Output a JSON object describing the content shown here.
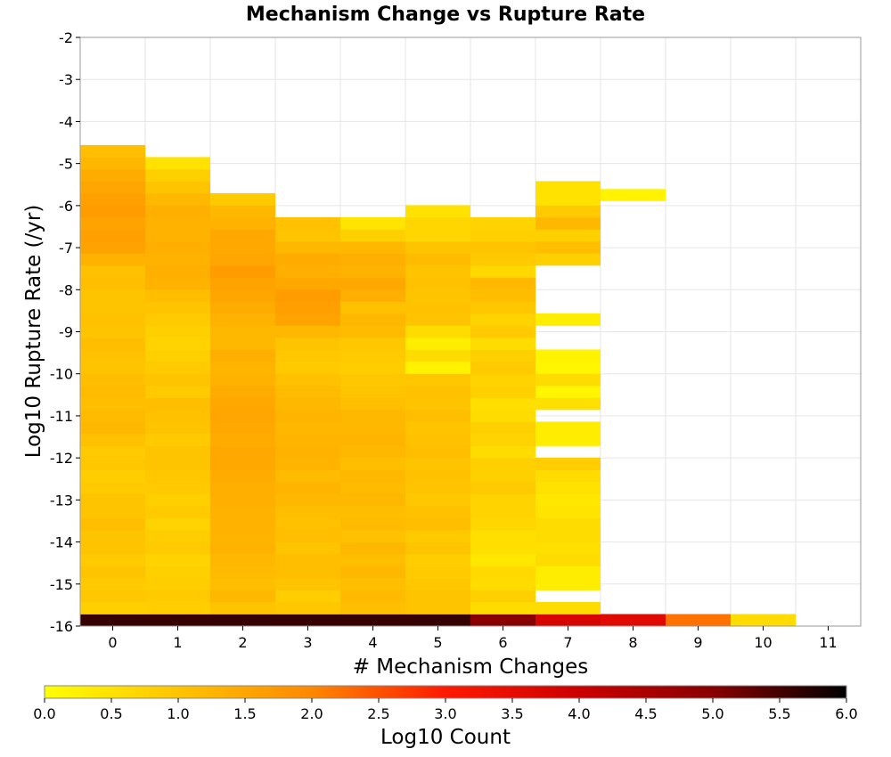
{
  "chart_data": {
    "type": "heatmap",
    "title": "Mechanism Change vs Rupture Rate",
    "xlabel": "# Mechanism Changes",
    "ylabel": "Log10 Rupture Rate (/yr)",
    "x_categories": [
      0,
      1,
      2,
      3,
      4,
      5,
      6,
      7,
      8,
      9,
      10,
      11
    ],
    "xlim": [
      -0.5,
      11.5
    ],
    "ylim": [
      -16,
      -2
    ],
    "y_ticks": [
      -2,
      -3,
      -4,
      -5,
      -6,
      -7,
      -8,
      -9,
      -10,
      -11,
      -12,
      -13,
      -14,
      -15,
      -16
    ],
    "y_bin_width": 0.286,
    "y_bin_start": -16.0,
    "grid": true,
    "colorbar": {
      "label": "Log10 Count",
      "range": [
        0,
        6
      ],
      "ticks": [
        "0.0",
        "0.5",
        "1.0",
        "1.5",
        "2.0",
        "2.5",
        "3.0",
        "3.5",
        "4.0",
        "4.5",
        "5.0",
        "5.5",
        "6.0"
      ],
      "colormap": [
        "#ffff00",
        "#ffc400",
        "#ff8800",
        "#ff1a00",
        "#cc0000",
        "#880000",
        "#000000"
      ]
    },
    "columns": [
      {
        "x": 0,
        "values": [
          5.6,
          0.8,
          0.95,
          0.9,
          1.0,
          0.9,
          1.0,
          1.0,
          1.1,
          1.0,
          1.0,
          0.9,
          0.85,
          0.95,
          0.9,
          1.05,
          1.2,
          1.15,
          1.1,
          1.15,
          1.1,
          1.0,
          1.05,
          1.1,
          1.0,
          1.05,
          1.0,
          1.0,
          1.1,
          1.05,
          1.3,
          1.55,
          1.6,
          1.55,
          1.65,
          1.6,
          1.5,
          1.4,
          1.2,
          1.1
        ]
      },
      {
        "x": 1,
        "values": [
          5.6,
          0.85,
          0.9,
          0.85,
          0.8,
          0.75,
          0.9,
          0.85,
          0.75,
          0.9,
          0.8,
          0.9,
          0.95,
          1.0,
          1.0,
          0.9,
          1.0,
          1.05,
          1.1,
          0.9,
          1.0,
          0.9,
          0.8,
          0.75,
          0.8,
          0.9,
          1.0,
          1.1,
          1.3,
          1.35,
          1.3,
          1.35,
          1.3,
          1.3,
          1.35,
          1.2,
          1.0,
          0.8,
          0.5
        ]
      },
      {
        "x": 2,
        "values": [
          5.6,
          1.0,
          1.2,
          1.1,
          1.15,
          1.2,
          1.3,
          1.25,
          1.3,
          1.3,
          1.35,
          1.35,
          1.4,
          1.45,
          1.45,
          1.4,
          1.45,
          1.5,
          1.45,
          1.4,
          1.3,
          1.25,
          1.35,
          1.2,
          1.2,
          1.3,
          1.4,
          1.5,
          1.55,
          1.65,
          1.5,
          1.45,
          1.45,
          1.3,
          1.2,
          0.9
        ]
      },
      {
        "x": 3,
        "values": [
          5.6,
          0.95,
          0.85,
          1.0,
          1.1,
          1.1,
          1.0,
          1.1,
          1.05,
          1.1,
          1.2,
          1.25,
          1.15,
          1.25,
          1.3,
          1.25,
          1.2,
          1.25,
          1.2,
          1.15,
          1.05,
          0.9,
          0.95,
          1.0,
          1.2,
          1.55,
          1.6,
          1.65,
          1.45,
          1.35,
          1.4,
          1.2,
          1.0,
          1.05
        ]
      },
      {
        "x": 4,
        "values": [
          5.6,
          1.1,
          1.15,
          1.1,
          1.2,
          1.1,
          1.2,
          1.05,
          1.15,
          1.1,
          1.2,
          1.15,
          1.2,
          1.1,
          1.2,
          1.25,
          1.2,
          1.2,
          1.1,
          1.0,
          0.95,
          0.85,
          0.9,
          0.95,
          1.15,
          1.2,
          1.05,
          1.35,
          1.45,
          1.3,
          1.35,
          1.2,
          0.8,
          0.45
        ]
      },
      {
        "x": 5,
        "values": [
          5.6,
          1.0,
          1.0,
          0.95,
          0.9,
          0.85,
          1.0,
          0.9,
          1.1,
          1.05,
          0.95,
          1.0,
          1.05,
          1.0,
          1.1,
          1.05,
          1.0,
          1.1,
          1.0,
          1.05,
          0.95,
          0.2,
          0.6,
          0.3,
          0.6,
          1.0,
          1.05,
          1.0,
          1.05,
          1.0,
          1.15,
          1.0,
          0.7,
          0.7,
          0.5
        ]
      },
      {
        "x": 6,
        "values": [
          5.0,
          0.6,
          0.8,
          0.6,
          0.65,
          0.4,
          0.55,
          0.55,
          0.7,
          0.75,
          0.75,
          0.9,
          0.8,
          0.8,
          0.6,
          0.75,
          0.8,
          0.6,
          0.55,
          0.8,
          0.75,
          0.9,
          0.8,
          0.6,
          0.9,
          0.75,
          0.95,
          1.1,
          1.2,
          0.65,
          0.9,
          1.0,
          0.8,
          0.75
        ]
      },
      {
        "x": 7,
        "values": [
          3.8,
          0.6,
          null,
          0.3,
          0.3,
          0.6,
          0.55,
          0.6,
          0.6,
          0.45,
          0.4,
          0.5,
          0.6,
          0.85,
          null,
          0.3,
          0.3,
          null,
          0.55,
          0.15,
          0.6,
          0.15,
          0.2,
          null,
          null,
          0.3,
          null,
          null,
          null,
          null,
          0.8,
          1.1,
          0.8,
          1.2,
          0.9,
          0.5,
          0.5
        ]
      },
      {
        "x": 8,
        "values": [
          3.6
        ]
      },
      {
        "x": 9,
        "values": [
          2.2
        ]
      },
      {
        "x": 10,
        "values": [
          0.6
        ]
      },
      {
        "x": 11,
        "values": []
      }
    ],
    "extras": [
      {
        "x": 8,
        "y_bin_center": -5.75,
        "value": 0.2
      }
    ]
  }
}
